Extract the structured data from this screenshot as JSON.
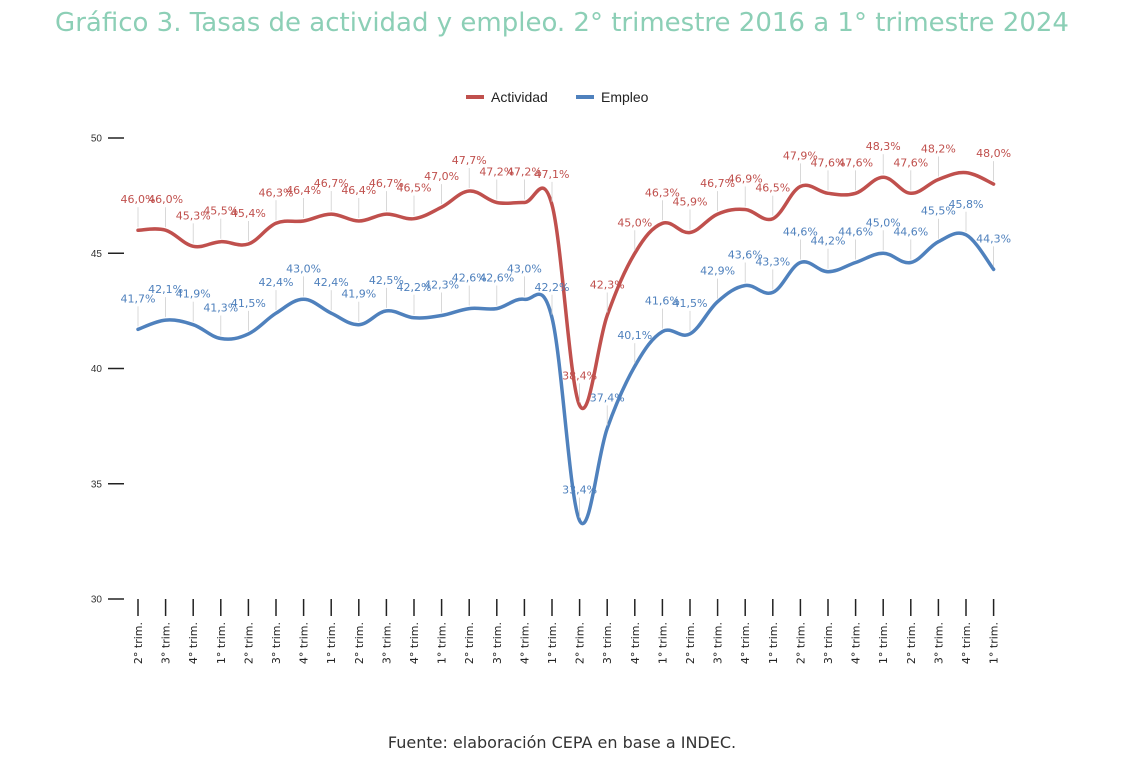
{
  "title": "Gráfico 3. Tasas de actividad y empleo. 2° trimestre 2016 a 1° trimestre 2024",
  "source": "Fuente: elaboración CEPA en base a INDEC.",
  "chart_data": {
    "type": "line",
    "title": "Gráfico 3. Tasas de actividad y empleo. 2° trimestre 2016 a 1° trimestre 2024",
    "legend_position": "top-center",
    "grid": false,
    "ylim": [
      30,
      50
    ],
    "yticks": [
      30,
      35,
      40,
      45,
      50
    ],
    "categories": [
      "2° trim.",
      "3° trim.",
      "4° trim.",
      "1° trim.",
      "2° trim.",
      "3° trim.",
      "4° trim.",
      "1° trim.",
      "2° trim.",
      "3° trim.",
      "4° trim.",
      "1° trim.",
      "2° trim.",
      "3° trim.",
      "4° trim.",
      "1° trim.",
      "2° trim.",
      "3° trim.",
      "4° trim.",
      "1° trim.",
      "2° trim.",
      "3° trim.",
      "4° trim.",
      "1° trim.",
      "2° trim.",
      "3° trim.",
      "4° trim.",
      "1° trim.",
      "2° trim.",
      "3° trim.",
      "4° trim.",
      "1° trim."
    ],
    "series": [
      {
        "name": "Actividad",
        "color": "#c0504d",
        "values": [
          46.0,
          46.0,
          45.3,
          45.5,
          45.4,
          46.3,
          46.4,
          46.7,
          46.4,
          46.7,
          46.5,
          47.0,
          47.7,
          47.2,
          47.2,
          47.1,
          38.4,
          42.3,
          45.0,
          46.3,
          45.9,
          46.7,
          46.9,
          46.5,
          47.9,
          47.6,
          47.6,
          48.3,
          47.6,
          48.2,
          48.5,
          48.0
        ],
        "labels": [
          "46,0%",
          "46,0%",
          "45,3%",
          "45,5%",
          "45,4%",
          "46,3%",
          "46,4%",
          "46,7%",
          "46,4%",
          "46,7%",
          "46,5%",
          "47,0%",
          "47,7%",
          "47,2%",
          "47,2%",
          "47,1%",
          "38,4%",
          "42,3%",
          "45,0%",
          "46,3%",
          "45,9%",
          "46,7%",
          "46,9%",
          "46,5%",
          "47,9%",
          "47,6%",
          "47,6%",
          "48,3%",
          "47,6%",
          "48,2%",
          "",
          "48,0%"
        ]
      },
      {
        "name": "Empleo",
        "color": "#4f81bd",
        "values": [
          41.7,
          42.1,
          41.9,
          41.3,
          41.5,
          42.4,
          43.0,
          42.4,
          41.9,
          42.5,
          42.2,
          42.3,
          42.6,
          42.6,
          43.0,
          42.2,
          33.4,
          37.4,
          40.1,
          41.6,
          41.5,
          42.9,
          43.6,
          43.3,
          44.6,
          44.2,
          44.6,
          45.0,
          44.6,
          45.5,
          45.8,
          44.3
        ],
        "labels": [
          "41,7%",
          "42,1%",
          "41,9%",
          "41,3%",
          "41,5%",
          "42,4%",
          "43,0%",
          "42,4%",
          "41,9%",
          "42,5%",
          "42,2%",
          "42,3%",
          "42,6%",
          "42,6%",
          "43,0%",
          "42,2%",
          "33,4%",
          "37,4%",
          "40,1%",
          "41,6%",
          "41,5%",
          "42,9%",
          "43,6%",
          "43,3%",
          "44,6%",
          "44,2%",
          "44,6%",
          "45,0%",
          "44,6%",
          "45,5%",
          "45,8%",
          "44,3%"
        ]
      }
    ]
  }
}
